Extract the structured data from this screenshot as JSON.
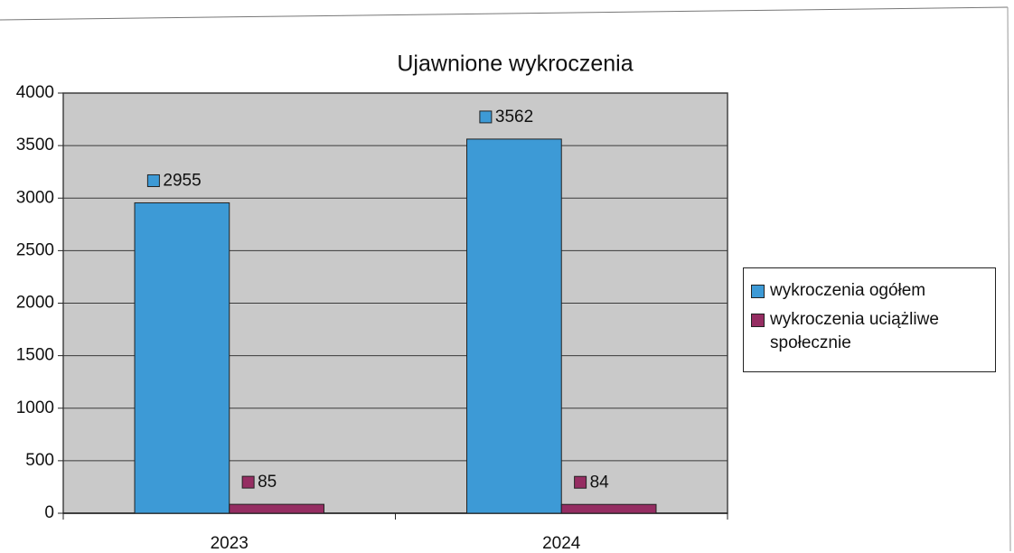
{
  "chart_data": {
    "type": "bar",
    "title": "Ujawnione wykroczenia",
    "categories": [
      "2023",
      "2024"
    ],
    "series": [
      {
        "name": "wykroczenia ogółem",
        "color": "#3d9ad6",
        "values": [
          2955,
          3562
        ]
      },
      {
        "name": "wykroczenia uciążliwe społecznie",
        "color": "#952d62",
        "values": [
          85,
          84
        ]
      }
    ],
    "ylim": [
      0,
      4000
    ],
    "yticks": [
      0,
      500,
      1000,
      1500,
      2000,
      2500,
      3000,
      3500,
      4000
    ],
    "grid": true,
    "legend": "right"
  }
}
